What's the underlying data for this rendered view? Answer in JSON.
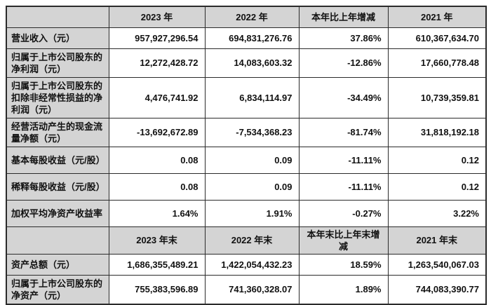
{
  "colors": {
    "header_bg": "#d4d4d4",
    "label_bg": "#d4d4d4",
    "border": "#2b2b2b",
    "text": "#111111",
    "cell_bg": "#ffffff"
  },
  "table": {
    "period_header": {
      "corner": "",
      "col_2023": "2023 年",
      "col_2022": "2022 年",
      "col_change": "本年比上年增减",
      "col_2021": "2021 年"
    },
    "period_rows": [
      {
        "label": "营业收入（元）",
        "v2023": "957,927,296.54",
        "v2022": "694,831,276.76",
        "change": "37.86%",
        "v2021": "610,367,634.70"
      },
      {
        "label": "归属于上市公司股东的净利润（元）",
        "v2023": "12,272,428.72",
        "v2022": "14,083,603.32",
        "change": "-12.86%",
        "v2021": "17,660,778.48"
      },
      {
        "label": "归属于上市公司股东的扣除非经常性损益的净利润（元）",
        "v2023": "4,476,741.92",
        "v2022": "6,834,114.97",
        "change": "-34.49%",
        "v2021": "10,739,359.81"
      },
      {
        "label": "经营活动产生的现金流量净额（元）",
        "v2023": "-13,692,672.89",
        "v2022": "-7,534,368.23",
        "change": "-81.74%",
        "v2021": "31,818,192.18"
      },
      {
        "label": "基本每股收益（元/股）",
        "v2023": "0.08",
        "v2022": "0.09",
        "change": "-11.11%",
        "v2021": "0.12"
      },
      {
        "label": "稀释每股收益（元/股）",
        "v2023": "0.08",
        "v2022": "0.09",
        "change": "-11.11%",
        "v2021": "0.12"
      },
      {
        "label": "加权平均净资产收益率",
        "v2023": "1.64%",
        "v2022": "1.91%",
        "change": "-0.27%",
        "v2021": "3.22%"
      }
    ],
    "yearend_header": {
      "corner": "",
      "col_2023": "2023 年末",
      "col_2022": "2022 年末",
      "col_change": "本年末比上年末增减",
      "col_2021": "2021 年末"
    },
    "yearend_rows": [
      {
        "label": "资产总额（元）",
        "v2023": "1,686,355,489.21",
        "v2022": "1,422,054,432.23",
        "change": "18.59%",
        "v2021": "1,263,540,067.03"
      },
      {
        "label": "归属于上市公司股东的净资产（元）",
        "v2023": "755,383,596.89",
        "v2022": "741,360,328.07",
        "change": "1.89%",
        "v2021": "744,083,390.77"
      }
    ]
  }
}
